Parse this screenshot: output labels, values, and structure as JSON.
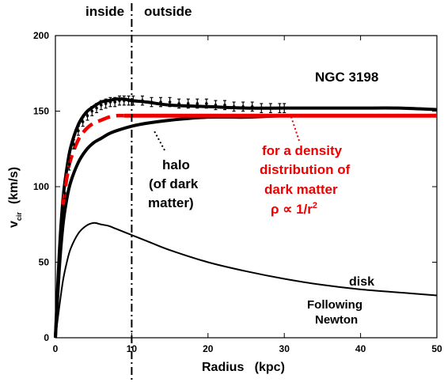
{
  "chart_data": {
    "type": "line",
    "title": "NGC 3198",
    "xlabel": "Radius   (kpc)",
    "ylabel_main": "v",
    "ylabel_sub": "cir",
    "ylabel_units": "(km/s)",
    "xlim": [
      0,
      50
    ],
    "ylim": [
      0,
      200
    ],
    "x_ticks": [
      0,
      10,
      20,
      30,
      40,
      50
    ],
    "y_ticks": [
      0,
      50,
      100,
      150,
      200
    ],
    "grid": false,
    "region_boundary_x": 10,
    "region_labels": {
      "left": "inside",
      "right": "outside"
    },
    "colors": {
      "model": "#000000",
      "density_model": "#ee0000",
      "data_points": "#000000"
    },
    "series": [
      {
        "name": "total",
        "style": "solid-thick",
        "x": [
          0,
          0.5,
          1,
          1.5,
          2,
          3,
          4,
          5,
          6,
          7,
          8,
          9,
          10,
          12,
          15,
          20,
          25,
          30,
          35,
          40,
          45,
          50
        ],
        "y": [
          0,
          55,
          92,
          112,
          126,
          141,
          149,
          153,
          156,
          157,
          158,
          158,
          157,
          156,
          154,
          153,
          152,
          152,
          152,
          152,
          152,
          151
        ]
      },
      {
        "name": "halo",
        "style": "solid-thick",
        "x": [
          0,
          0.5,
          1,
          1.5,
          2,
          3,
          4,
          5,
          6,
          7,
          8,
          10,
          12,
          15,
          20,
          25,
          30,
          35,
          40,
          45,
          50
        ],
        "y": [
          0,
          45,
          75,
          92,
          103,
          116,
          124,
          129,
          132,
          135,
          137,
          140,
          142,
          144,
          146,
          146,
          147,
          147,
          147,
          147,
          147
        ]
      },
      {
        "name": "disk",
        "style": "solid-thin",
        "x": [
          0,
          0.5,
          1,
          1.5,
          2,
          3,
          4,
          5,
          6,
          7,
          8,
          10,
          12,
          15,
          20,
          25,
          30,
          35,
          40,
          45,
          50
        ],
        "y": [
          0,
          20,
          38,
          50,
          59,
          69,
          74,
          76,
          75,
          74,
          72,
          68,
          64,
          58,
          50,
          44,
          39,
          35,
          32,
          30,
          28
        ]
      },
      {
        "name": "density_model_dashed",
        "style": "red-dashed",
        "x": [
          1,
          1.5,
          2,
          3,
          4,
          5,
          6,
          7,
          8,
          9
        ],
        "y": [
          88,
          106,
          118,
          131,
          138,
          142,
          144,
          146,
          147,
          147
        ]
      },
      {
        "name": "density_model_flat",
        "style": "red-solid",
        "x": [
          9,
          50
        ],
        "y": [
          147,
          147
        ]
      }
    ],
    "observed_points": {
      "x": [
        1.2,
        1.8,
        2.4,
        3.0,
        3.6,
        4.2,
        4.8,
        5.4,
        6.0,
        6.6,
        7.2,
        7.8,
        8.4,
        9.0,
        9.6,
        10.2,
        11.4,
        12.6,
        13.8,
        15.0,
        16.2,
        17.4,
        18.6,
        19.8,
        21.0,
        22.2,
        23.4,
        24.6,
        25.8,
        27.0,
        28.2,
        29.4,
        30.0
      ],
      "y": [
        96,
        115,
        128,
        137,
        143,
        147,
        150,
        152,
        154,
        155,
        156,
        156,
        157,
        157,
        157,
        157,
        157,
        156,
        156,
        156,
        155,
        155,
        155,
        155,
        154,
        154,
        153,
        153,
        153,
        152,
        152,
        152,
        152
      ],
      "error": [
        4,
        4,
        3,
        3,
        3,
        3,
        3,
        3,
        3,
        3,
        3,
        3,
        3,
        3,
        3,
        3,
        3,
        3,
        3,
        3,
        3,
        3,
        3,
        3,
        3,
        3,
        3,
        3,
        3,
        3,
        3,
        3,
        3
      ]
    },
    "annotations": {
      "halo": [
        "halo",
        "(of dark",
        "matter)"
      ],
      "density": [
        "for a density",
        "distribution of",
        "dark matter"
      ],
      "density_formula": {
        "rho": "ρ ∝ 1/r",
        "exponent": "2"
      },
      "disk": "disk",
      "newton": [
        "Following",
        "Newton"
      ]
    }
  }
}
